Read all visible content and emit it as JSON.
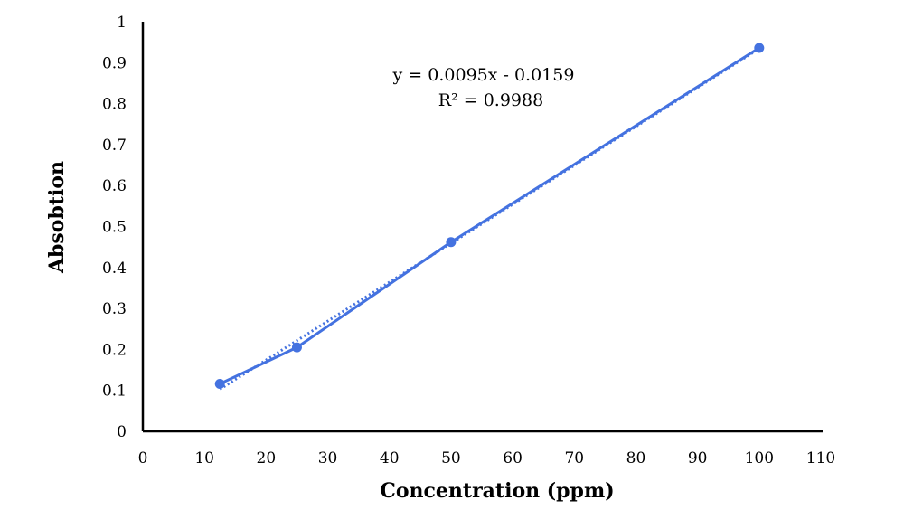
{
  "chart_data": {
    "type": "scatter",
    "title": "",
    "xlabel": "Concentration (ppm)",
    "ylabel": "Absobtion",
    "xlim": [
      0,
      110
    ],
    "ylim": [
      0,
      1
    ],
    "x_ticks": [
      0,
      10,
      20,
      30,
      40,
      50,
      60,
      70,
      80,
      90,
      100,
      110
    ],
    "y_ticks": [
      0,
      0.1,
      0.2,
      0.3,
      0.4,
      0.5,
      0.6,
      0.7,
      0.8,
      0.9,
      1
    ],
    "grid": false,
    "legend": "none",
    "series": [
      {
        "x": [
          12.5,
          25,
          50,
          100
        ],
        "y": [
          0.116,
          0.205,
          0.462,
          0.936
        ],
        "color": "#4472e0",
        "style": "solid line with circle markers"
      }
    ],
    "trendline": {
      "type": "linear",
      "slope": 0.0095,
      "intercept": -0.0159,
      "r_squared": 0.9988,
      "style": "dotted",
      "color": "#4472e0",
      "equation_label": "y = 0.0095x - 0.0159",
      "r2_label": "R² = 0.9988"
    }
  }
}
